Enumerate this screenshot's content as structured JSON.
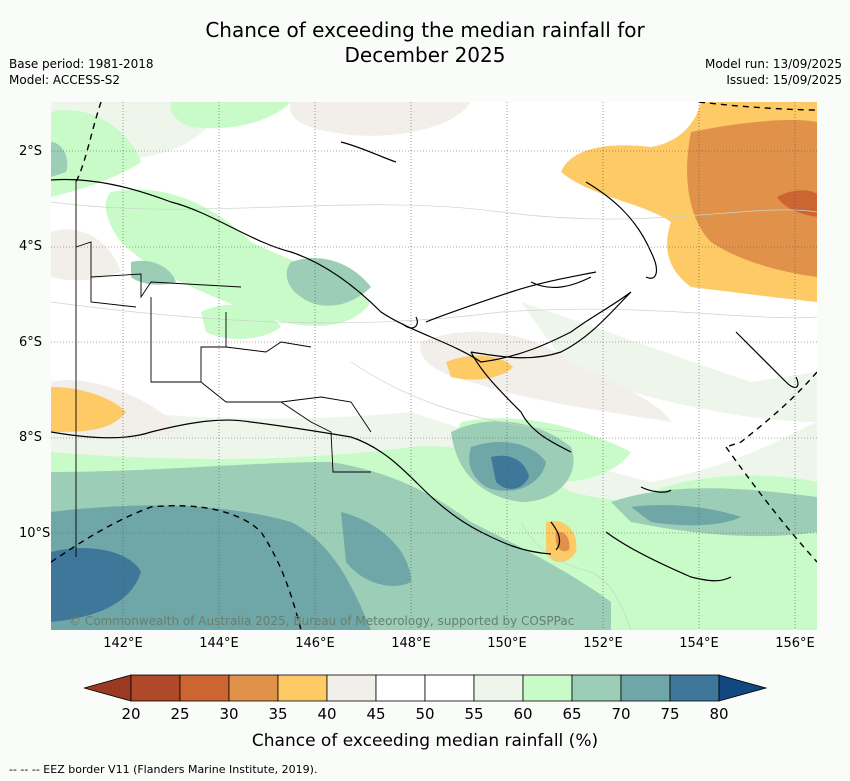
{
  "title_line1": "Chance of exceeding the median rainfall for",
  "title_line2": "December 2025",
  "meta_left": {
    "base_period": "Base period: 1981-2018",
    "model": "Model: ACCESS-S2"
  },
  "meta_right": {
    "model_run": "Model run: 13/09/2025",
    "issued": "Issued: 15/09/2025"
  },
  "map": {
    "region": "Papua New Guinea",
    "lon_range": [
      140.5,
      156.5
    ],
    "lat_range": [
      -12,
      -1
    ],
    "lat_ticks": [
      "2°S",
      "4°S",
      "6°S",
      "8°S",
      "10°S"
    ],
    "lon_ticks": [
      "142°E",
      "144°E",
      "146°E",
      "148°E",
      "150°E",
      "152°E",
      "154°E",
      "156°E"
    ],
    "copyright": "© Commonwealth of Australia 2025, Bureau of Meteorology, supported by COSPPac"
  },
  "colorbar": {
    "ticks": [
      "20",
      "25",
      "30",
      "35",
      "40",
      "45",
      "50",
      "55",
      "60",
      "65",
      "70",
      "75",
      "80"
    ],
    "colors": [
      "#b0482a",
      "#cd6532",
      "#e0924a",
      "#fdca65",
      "#f2eeea",
      "#ffffff",
      "#ffffff",
      "#eef6ec",
      "#c8fbc8",
      "#9ccdb6",
      "#6fa6a8",
      "#3e7799"
    ],
    "under_color": "#9a3a22",
    "over_color": "#11487f",
    "label": "Chance of exceeding median rainfall (%)"
  },
  "footnote": "--  --  -- EEZ border V11 (Flanders Marine Institute, 2019)."
}
